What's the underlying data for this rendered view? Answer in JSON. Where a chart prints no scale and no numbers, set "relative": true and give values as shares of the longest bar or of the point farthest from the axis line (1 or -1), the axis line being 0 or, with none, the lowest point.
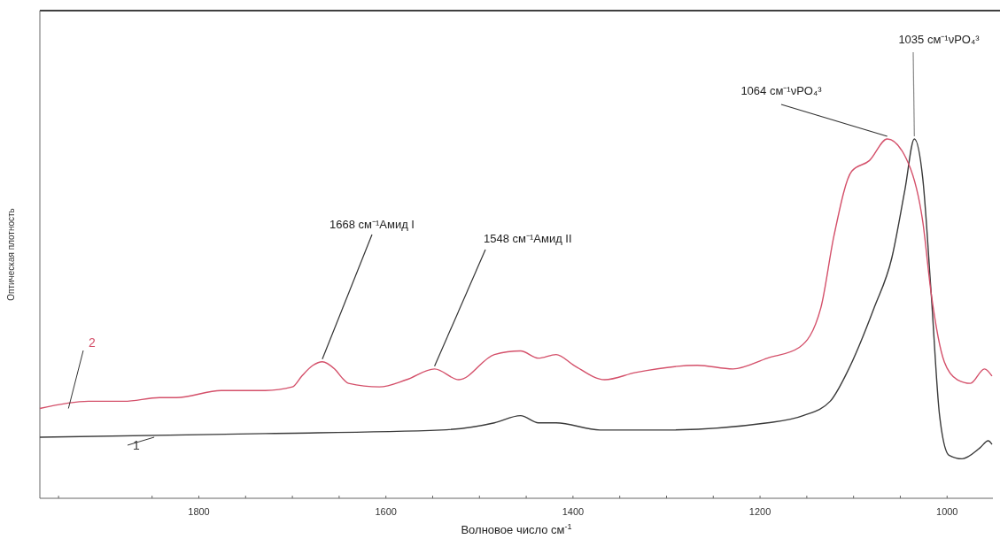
{
  "chart_data": {
    "type": "line",
    "relative": true,
    "xlabel": "Волновое число см$^{-1}$",
    "ylabel": "Оптическая плотность",
    "xlim": [
      1970,
      951
    ],
    "xticks": [
      {
        "value": 1950,
        "label": null
      },
      1800,
      {
        "value": 1850,
        "label": null
      },
      {
        "value": 1750,
        "label": null
      },
      {
        "value": 1700,
        "label": null
      },
      {
        "value": 1650,
        "label": null
      },
      1600,
      {
        "value": 1550,
        "label": null
      },
      {
        "value": 1500,
        "label": null
      },
      {
        "value": 1450,
        "label": null
      },
      1400,
      {
        "value": 1350,
        "label": null
      },
      {
        "value": 1300,
        "label": null
      },
      {
        "value": 1250,
        "label": null
      },
      1200,
      {
        "value": 1150,
        "label": null
      },
      {
        "value": 1100,
        "label": null
      },
      {
        "value": 1050,
        "label": null
      },
      1000
    ],
    "tick_labels": "x",
    "grid": false,
    "legend": false,
    "marker": "none",
    "line_style": "solid",
    "series": [
      {
        "name": "1",
        "color": "#3a3a3a",
        "x": [
          1970,
          1729,
          1541,
          1484,
          1456,
          1437,
          1418,
          1371,
          1305,
          1192,
          1154,
          1125,
          1107,
          1078,
          1059,
          1045,
          1035,
          1026,
          1017,
          1008,
          998,
          984,
          965,
          956,
          952
        ],
        "values": [
          0.17,
          0.18,
          0.19,
          0.21,
          0.23,
          0.21,
          0.21,
          0.19,
          0.19,
          0.21,
          0.23,
          0.27,
          0.35,
          0.53,
          0.67,
          0.86,
          1,
          0.89,
          0.57,
          0.23,
          0.12,
          0.11,
          0.14,
          0.16,
          0.15
        ]
      },
      {
        "name": "2",
        "color": "#d4506a",
        "x": [
          1970,
          1918,
          1880,
          1842,
          1824,
          1776,
          1729,
          1700,
          1690,
          1678,
          1668,
          1655,
          1645,
          1640,
          1607,
          1578,
          1548,
          1522,
          1484,
          1456,
          1437,
          1418,
          1399,
          1366,
          1333,
          1267,
          1229,
          1192,
          1158,
          1135,
          1121,
          1102,
          1083,
          1064,
          1041,
          1026,
          1017,
          1003,
          989,
          975,
          960,
          952
        ],
        "values": [
          0.25,
          0.27,
          0.27,
          0.28,
          0.28,
          0.3,
          0.3,
          0.31,
          0.34,
          0.37,
          0.38,
          0.36,
          0.33,
          0.32,
          0.31,
          0.33,
          0.36,
          0.33,
          0.4,
          0.41,
          0.39,
          0.4,
          0.37,
          0.33,
          0.35,
          0.37,
          0.36,
          0.39,
          0.42,
          0.53,
          0.73,
          0.91,
          0.94,
          1,
          0.93,
          0.77,
          0.57,
          0.38,
          0.33,
          0.32,
          0.36,
          0.34
        ]
      }
    ],
    "annotations": [
      {
        "text": "1668 см⁻¹Амид I",
        "x": 1668,
        "y": 0.38
      },
      {
        "text": "1548 см⁻¹Амид II",
        "x": 1548,
        "y": 0.36
      },
      {
        "text": "1064 см⁻¹νPO₄³",
        "x": 1064,
        "y": 1
      },
      {
        "text": "1035 см⁻¹νPO₄³",
        "x": 1035,
        "y": 1
      }
    ]
  }
}
